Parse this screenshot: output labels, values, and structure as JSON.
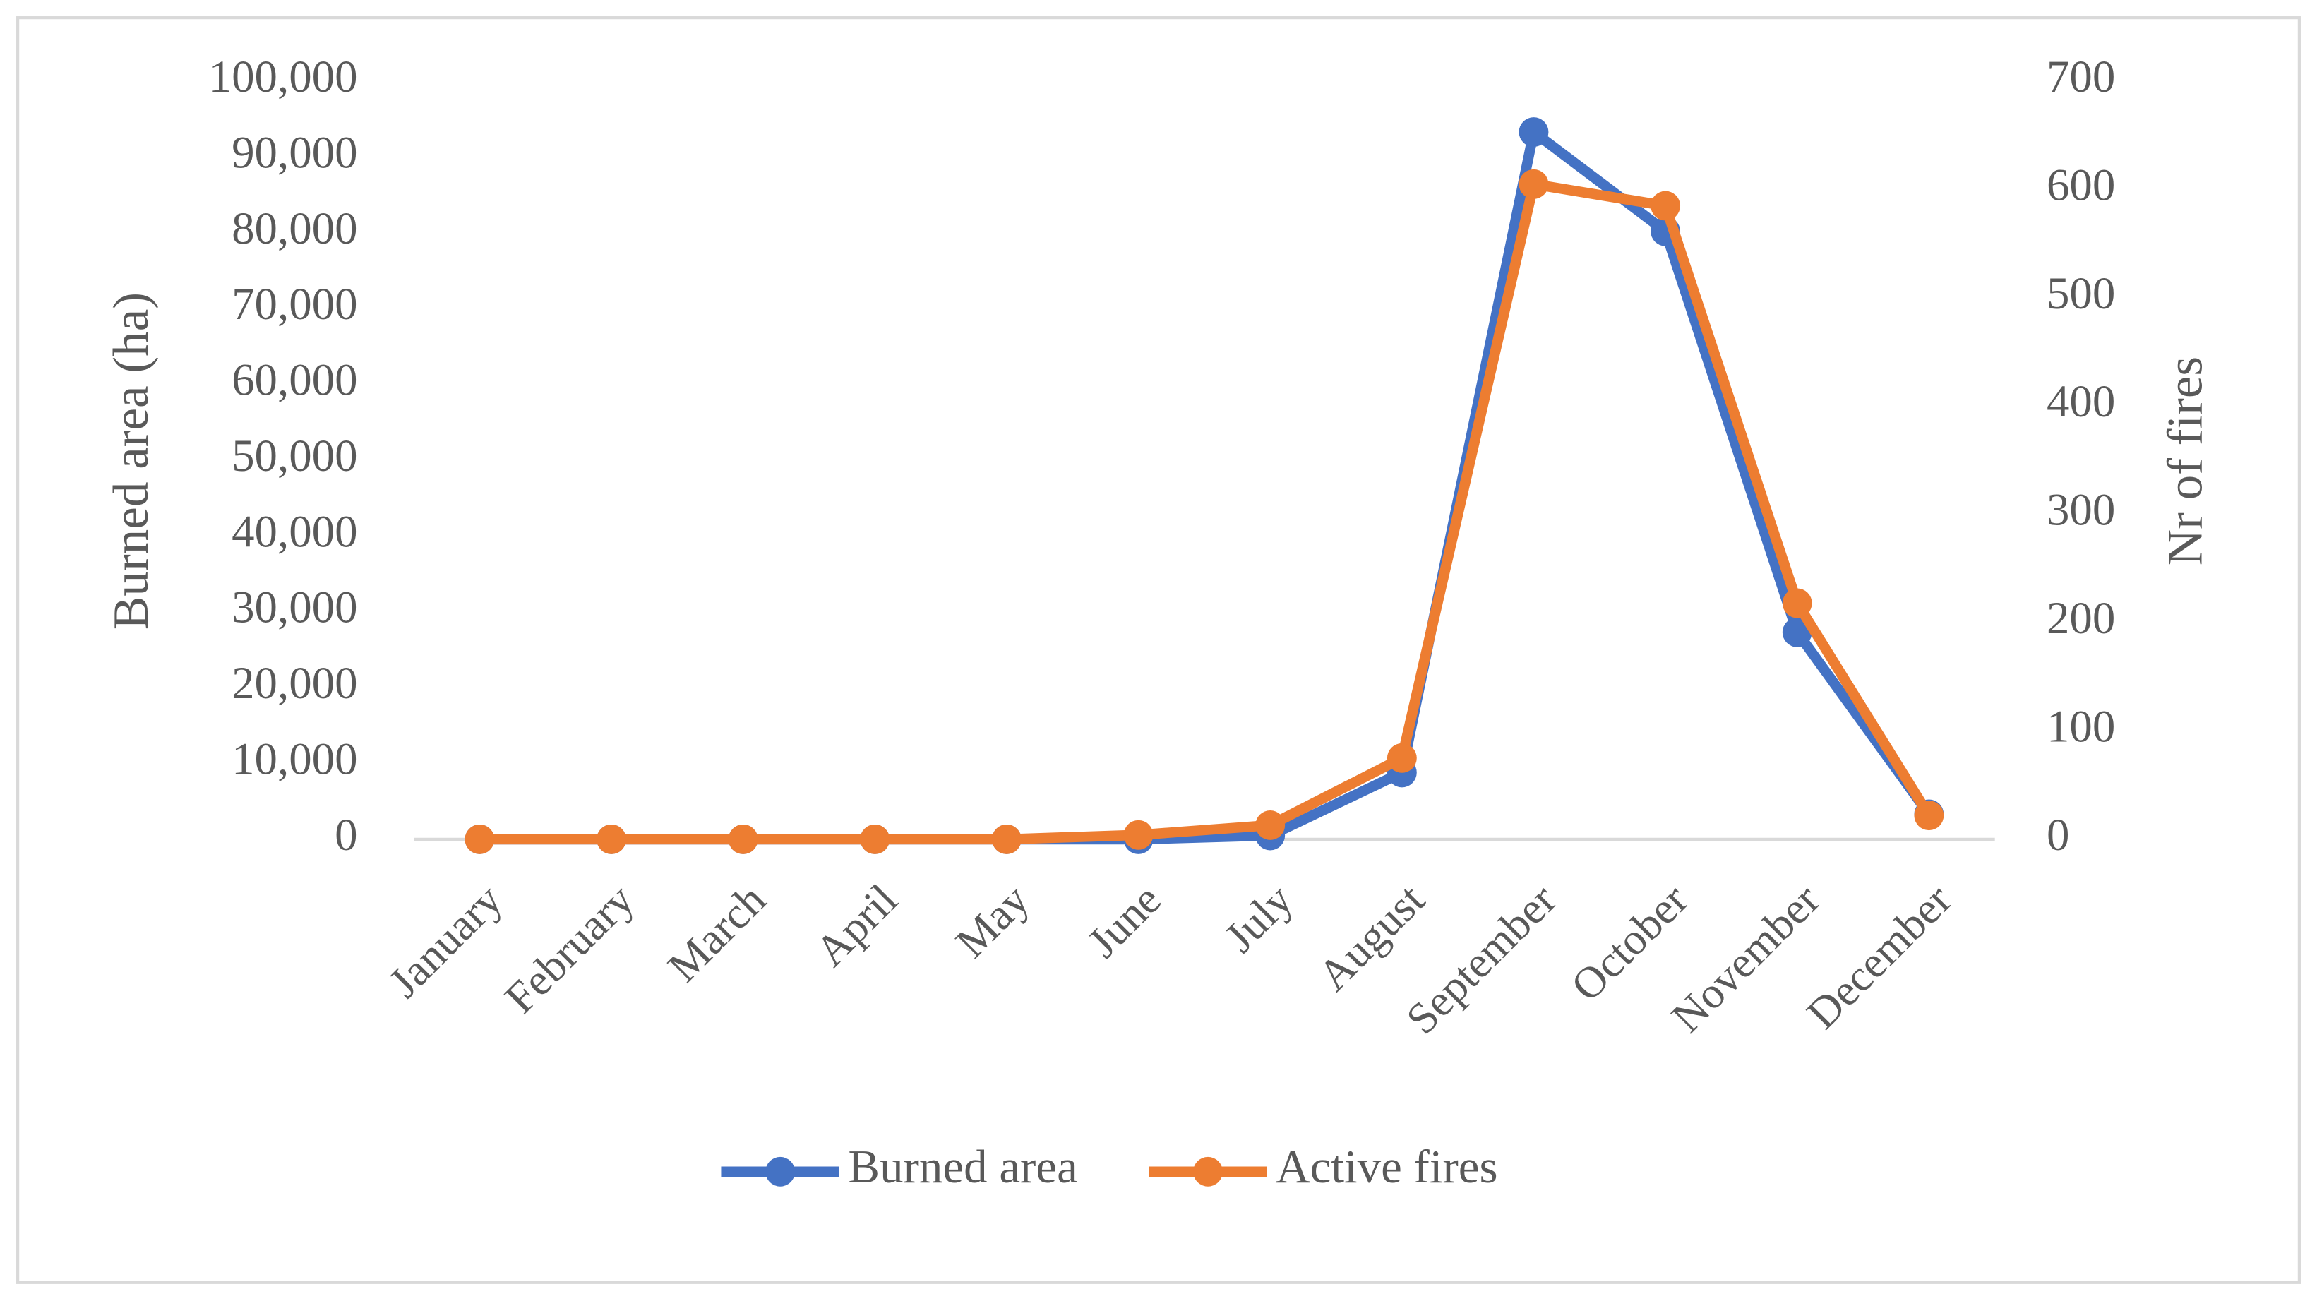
{
  "chart_data": {
    "type": "line",
    "categories": [
      "January",
      "February",
      "March",
      "April",
      "May",
      "June",
      "July",
      "August",
      "September",
      "October",
      "November",
      "December"
    ],
    "series": [
      {
        "name": "Burned area",
        "color": "#4472c4",
        "axis": "y",
        "values": [
          0,
          0,
          0,
          0,
          0,
          0,
          500,
          8800,
          93300,
          80200,
          27300,
          3300
        ]
      },
      {
        "name": "Active fires",
        "color": "#ed7d31",
        "axis": "y2",
        "values": [
          0,
          0,
          0,
          0,
          0,
          4,
          13,
          75,
          605,
          585,
          218,
          22
        ]
      }
    ],
    "y_label": "Burned area (ha)",
    "y2_label": "Nr of fires",
    "ylim": [
      0,
      100000
    ],
    "yticks": [
      0,
      {
        "value": 10000,
        "label": "10,000"
      },
      {
        "value": 20000,
        "label": "20,000"
      },
      {
        "value": 30000,
        "label": "30,000"
      },
      {
        "value": 40000,
        "label": "40,000"
      },
      {
        "value": 50000,
        "label": "50,000"
      },
      {
        "value": 60000,
        "label": "60,000"
      },
      {
        "value": 70000,
        "label": "70,000"
      },
      {
        "value": 80000,
        "label": "80,000"
      },
      {
        "value": 90000,
        "label": "90,000"
      },
      {
        "value": 100000,
        "label": "100,000"
      }
    ],
    "y2lim": [
      0,
      700
    ],
    "y2ticks": [
      0,
      100,
      200,
      300,
      400,
      500,
      600,
      700
    ],
    "grid": false,
    "legend": "bottom"
  }
}
